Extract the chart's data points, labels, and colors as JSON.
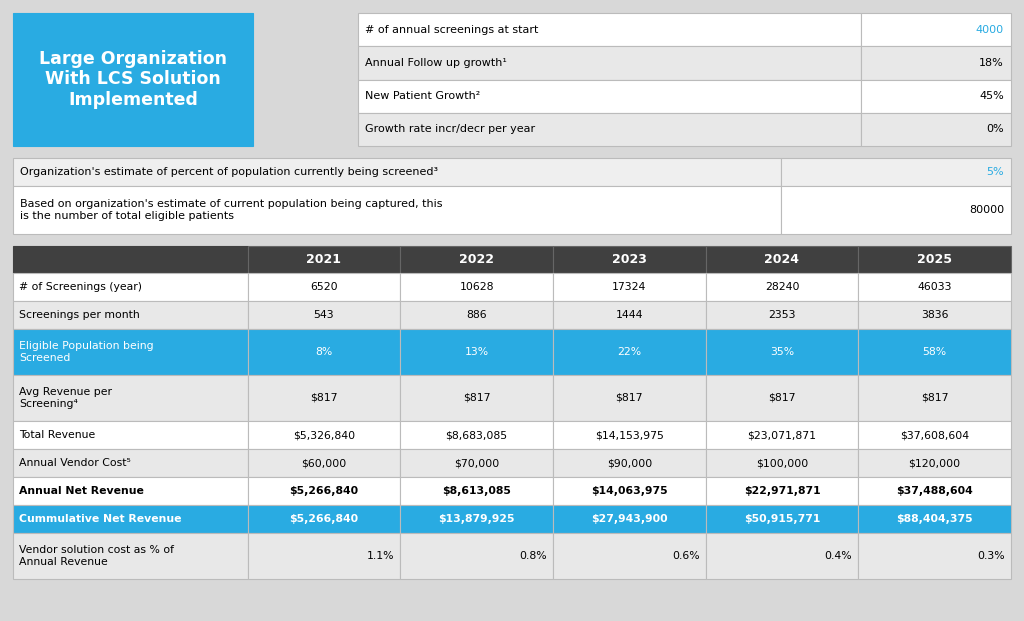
{
  "title_box": {
    "text": "Large Organization\nWith LCS Solution\nImplemented",
    "bg_color": "#29ABE2",
    "text_color": "#FFFFFF",
    "font_size": 12.5
  },
  "top_right_table": {
    "rows": [
      {
        "label": "# of annual screenings at start",
        "value": "4000",
        "value_color": "#29ABE2"
      },
      {
        "label": "Annual Follow up growth¹",
        "value": "18%",
        "value_color": "#000000"
      },
      {
        "label": "New Patient Growth²",
        "value": "45%",
        "value_color": "#000000"
      },
      {
        "label": "Growth rate incr/decr per year",
        "value": "0%",
        "value_color": "#000000"
      }
    ],
    "row_bg": [
      "#FFFFFF",
      "#E8E8E8",
      "#FFFFFF",
      "#E8E8E8"
    ]
  },
  "mid_table": {
    "rows": [
      {
        "label": "Organization's estimate of percent of population currently being screened³",
        "value": "5%",
        "value_color": "#29ABE2"
      },
      {
        "label": "Based on organization's estimate of current population being captured, this\nis the number of total eligible patients",
        "value": "80000",
        "value_color": "#000000"
      }
    ],
    "row_bg": [
      "#EFEFEF",
      "#FFFFFF"
    ]
  },
  "main_table": {
    "header_bg": "#404040",
    "header_text_color": "#FFFFFF",
    "years": [
      "2021",
      "2022",
      "2023",
      "2024",
      "2025"
    ],
    "rows": [
      {
        "label": "# of Screenings (year)",
        "values": [
          "6520",
          "10628",
          "17324",
          "28240",
          "46033"
        ],
        "bg": "#FFFFFF",
        "text_color": "#000000",
        "bold": false,
        "val_align": "center"
      },
      {
        "label": "Screenings per month",
        "values": [
          "543",
          "886",
          "1444",
          "2353",
          "3836"
        ],
        "bg": "#E8E8E8",
        "text_color": "#000000",
        "bold": false,
        "val_align": "center"
      },
      {
        "label": "Eligible Population being\nScreened",
        "values": [
          "8%",
          "13%",
          "22%",
          "35%",
          "58%"
        ],
        "bg": "#29ABE2",
        "text_color": "#FFFFFF",
        "bold": false,
        "val_align": "center"
      },
      {
        "label": "Avg Revenue per\nScreening⁴",
        "values": [
          "$817",
          "$817",
          "$817",
          "$817",
          "$817"
        ],
        "bg": "#E8E8E8",
        "text_color": "#000000",
        "bold": false,
        "val_align": "center"
      },
      {
        "label": "Total Revenue",
        "values": [
          "$5,326,840",
          "$8,683,085",
          "$14,153,975",
          "$23,071,871",
          "$37,608,604"
        ],
        "bg": "#FFFFFF",
        "text_color": "#000000",
        "bold": false,
        "val_align": "center"
      },
      {
        "label": "Annual Vendor Cost⁵",
        "values": [
          "$60,000",
          "$70,000",
          "$90,000",
          "$100,000",
          "$120,000"
        ],
        "bg": "#E8E8E8",
        "text_color": "#000000",
        "bold": false,
        "val_align": "center"
      },
      {
        "label": "Annual Net Revenue",
        "values": [
          "$5,266,840",
          "$8,613,085",
          "$14,063,975",
          "$22,971,871",
          "$37,488,604"
        ],
        "bg": "#FFFFFF",
        "text_color": "#000000",
        "bold": true,
        "val_align": "center"
      },
      {
        "label": "Cummulative Net Revenue",
        "values": [
          "$5,266,840",
          "$13,879,925",
          "$27,943,900",
          "$50,915,771",
          "$88,404,375"
        ],
        "bg": "#29ABE2",
        "text_color": "#FFFFFF",
        "bold": true,
        "val_align": "center"
      },
      {
        "label": "Vendor solution cost as % of\nAnnual Revenue",
        "values": [
          "1.1%",
          "0.8%",
          "0.6%",
          "0.4%",
          "0.3%"
        ],
        "bg": "#E8E8E8",
        "text_color": "#000000",
        "bold": false,
        "val_align": "right"
      }
    ]
  },
  "border_color": "#BBBBBB",
  "page_bg": "#D8D8D8",
  "bg_color": "#FFFFFF"
}
